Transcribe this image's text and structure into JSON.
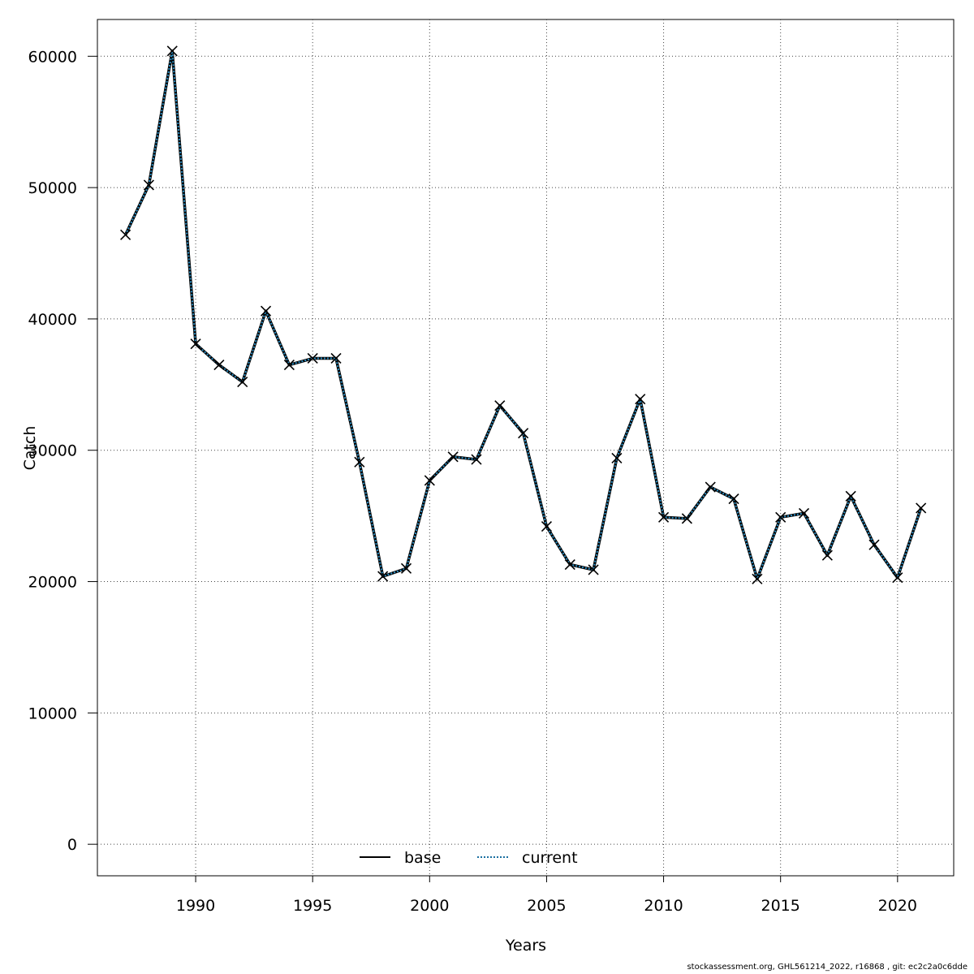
{
  "chart_data": {
    "type": "line",
    "xlabel": "Years",
    "ylabel": "Catch",
    "xlim": [
      1985.8,
      2022.4
    ],
    "ylim": [
      -2400,
      62800
    ],
    "x_ticks": [
      1990,
      1995,
      2000,
      2005,
      2010,
      2015,
      2020
    ],
    "y_ticks": [
      0,
      10000,
      20000,
      30000,
      40000,
      50000,
      60000
    ],
    "grid": true,
    "legend_position": "bottom-center",
    "x": [
      1987,
      1988,
      1989,
      1990,
      1991,
      1992,
      1993,
      1994,
      1995,
      1996,
      1997,
      1998,
      1999,
      2000,
      2001,
      2002,
      2003,
      2004,
      2005,
      2006,
      2007,
      2008,
      2009,
      2010,
      2011,
      2012,
      2013,
      2014,
      2015,
      2016,
      2017,
      2018,
      2019,
      2020,
      2021
    ],
    "series": [
      {
        "name": "base",
        "color": "#000000",
        "style": "solid",
        "values": [
          46400,
          50200,
          60400,
          38100,
          36500,
          35200,
          40600,
          36500,
          37000,
          37000,
          29100,
          20400,
          21000,
          27700,
          29500,
          29300,
          33400,
          31300,
          24200,
          21300,
          20900,
          29400,
          33900,
          24900,
          24800,
          27200,
          26300,
          20200,
          24900,
          25200,
          22000,
          26500,
          22800,
          20300,
          25600
        ]
      },
      {
        "name": "current",
        "color": "#1a6fa0",
        "style": "dotted",
        "values": [
          46400,
          50200,
          60400,
          38100,
          36500,
          35200,
          40600,
          36500,
          37000,
          37000,
          29100,
          20400,
          21000,
          27700,
          29500,
          29300,
          33400,
          31300,
          24200,
          21300,
          20900,
          29400,
          33900,
          24900,
          24800,
          27200,
          26300,
          20200,
          24900,
          25200,
          22000,
          26500,
          22800,
          20300,
          25600
        ]
      }
    ]
  },
  "footer_text": "stockassessment.org, GHL561214_2022, r16868 , git: ec2c2a0c6dde"
}
